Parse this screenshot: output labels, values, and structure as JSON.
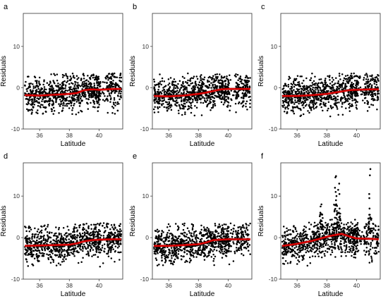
{
  "chart_data": [
    {
      "panel": "a",
      "type": "scatter",
      "xlabel": "Latitude",
      "ylabel": "Residuals",
      "xlim": [
        34.9,
        41.6
      ],
      "ylim": [
        -10,
        18
      ],
      "xticks": [
        36,
        38,
        40
      ],
      "yticks": [
        -10,
        0,
        10
      ],
      "x_tick_labels": [
        "36",
        "38",
        "40"
      ],
      "y_tick_labels": [
        "-10",
        "0",
        "10"
      ],
      "point_spread": [
        -6.5,
        3.5
      ],
      "spikes": [],
      "smooth": {
        "x": [
          35.0,
          36.0,
          37.0,
          38.0,
          38.5,
          39.0,
          39.5,
          40.0,
          41.0,
          41.5
        ],
        "y": [
          -1.8,
          -1.9,
          -1.7,
          -1.5,
          -1.3,
          -0.6,
          -0.4,
          -0.5,
          -0.3,
          -0.3
        ]
      }
    },
    {
      "panel": "b",
      "type": "scatter",
      "xlabel": "Latitude",
      "ylabel": "Residuals",
      "xlim": [
        34.9,
        41.6
      ],
      "ylim": [
        -10,
        18
      ],
      "xticks": [
        36,
        38,
        40
      ],
      "yticks": [
        -10,
        0,
        10
      ],
      "x_tick_labels": [
        "36",
        "38",
        "40"
      ],
      "y_tick_labels": [
        "-10",
        "0",
        "10"
      ],
      "point_spread": [
        -7,
        3.5
      ],
      "spikes": [],
      "smooth": {
        "x": [
          35.0,
          36.0,
          37.0,
          38.0,
          38.5,
          39.0,
          39.5,
          40.0,
          41.0,
          41.5
        ],
        "y": [
          -2.0,
          -2.1,
          -1.9,
          -1.5,
          -1.2,
          -0.8,
          -0.4,
          -0.3,
          -0.3,
          -0.3
        ]
      }
    },
    {
      "panel": "c",
      "type": "scatter",
      "xlabel": "Latitude",
      "ylabel": "Residuals",
      "xlim": [
        34.9,
        41.6
      ],
      "ylim": [
        -10,
        18
      ],
      "xticks": [
        36,
        38,
        40
      ],
      "yticks": [
        -10,
        0,
        10
      ],
      "x_tick_labels": [
        "36",
        "38",
        "40"
      ],
      "y_tick_labels": [
        "-10",
        "0",
        "10"
      ],
      "point_spread": [
        -7,
        3.5
      ],
      "spikes": [],
      "smooth": {
        "x": [
          35.0,
          36.0,
          37.0,
          38.0,
          38.5,
          39.0,
          39.5,
          40.0,
          41.0,
          41.5
        ],
        "y": [
          -2.0,
          -2.0,
          -1.8,
          -1.5,
          -1.2,
          -0.9,
          -0.6,
          -0.5,
          -0.4,
          -0.4
        ]
      }
    },
    {
      "panel": "d",
      "type": "scatter",
      "xlabel": "Latitude",
      "ylabel": "Residuals",
      "xlim": [
        34.9,
        41.6
      ],
      "ylim": [
        -10,
        18
      ],
      "xticks": [
        36,
        38,
        40
      ],
      "yticks": [
        -10,
        0,
        10
      ],
      "x_tick_labels": [
        "36",
        "38",
        "40"
      ],
      "y_tick_labels": [
        "-10",
        "0",
        "10"
      ],
      "point_spread": [
        -7,
        3.5
      ],
      "spikes": [],
      "smooth": {
        "x": [
          35.0,
          36.0,
          37.0,
          38.0,
          38.5,
          39.0,
          39.5,
          40.0,
          41.0,
          41.5
        ],
        "y": [
          -2.0,
          -1.9,
          -1.8,
          -1.7,
          -1.4,
          -0.9,
          -0.6,
          -0.5,
          -0.4,
          -0.4
        ]
      }
    },
    {
      "panel": "e",
      "type": "scatter",
      "xlabel": "Latitude",
      "ylabel": "Residuals",
      "xlim": [
        34.9,
        41.6
      ],
      "ylim": [
        -10,
        18
      ],
      "xticks": [
        36,
        38,
        40
      ],
      "yticks": [
        -10,
        0,
        10
      ],
      "x_tick_labels": [
        "36",
        "38",
        "40"
      ],
      "y_tick_labels": [
        "-10",
        "0",
        "10"
      ],
      "point_spread": [
        -7,
        3.5
      ],
      "spikes": [],
      "smooth": {
        "x": [
          35.0,
          36.0,
          37.0,
          38.0,
          38.5,
          39.0,
          39.5,
          40.0,
          41.0,
          41.5
        ],
        "y": [
          -2.0,
          -2.0,
          -1.8,
          -1.6,
          -1.2,
          -0.6,
          -0.5,
          -0.4,
          -0.4,
          -0.4
        ]
      }
    },
    {
      "panel": "f",
      "type": "scatter",
      "xlabel": "Latitude",
      "ylabel": "Residuals",
      "xlim": [
        34.9,
        41.6
      ],
      "ylim": [
        -10,
        18
      ],
      "xticks": [
        36,
        38,
        40
      ],
      "yticks": [
        -10,
        0,
        10
      ],
      "x_tick_labels": [
        "36",
        "38",
        "40"
      ],
      "y_tick_labels": [
        "-10",
        "0",
        "10"
      ],
      "point_spread": [
        -7,
        4.5
      ],
      "spikes": [
        {
          "x": 37.6,
          "y": [
            6,
            8,
            7.5
          ]
        },
        {
          "x": 38.6,
          "y": [
            14.5,
            14.8,
            12,
            11,
            10,
            9,
            8
          ]
        },
        {
          "x": 38.8,
          "y": [
            13,
            11.5,
            10.5,
            7,
            6
          ]
        },
        {
          "x": 40.9,
          "y": [
            16.5,
            15,
            10.5,
            9.5,
            7,
            5.5
          ]
        }
      ],
      "smooth": {
        "x": [
          35.0,
          36.0,
          37.0,
          37.5,
          38.0,
          38.5,
          39.0,
          39.5,
          40.0,
          41.0,
          41.5
        ],
        "y": [
          -2.0,
          -1.5,
          -0.8,
          -0.3,
          0.2,
          0.6,
          0.9,
          0.3,
          -0.2,
          -0.3,
          -0.4
        ]
      }
    }
  ]
}
